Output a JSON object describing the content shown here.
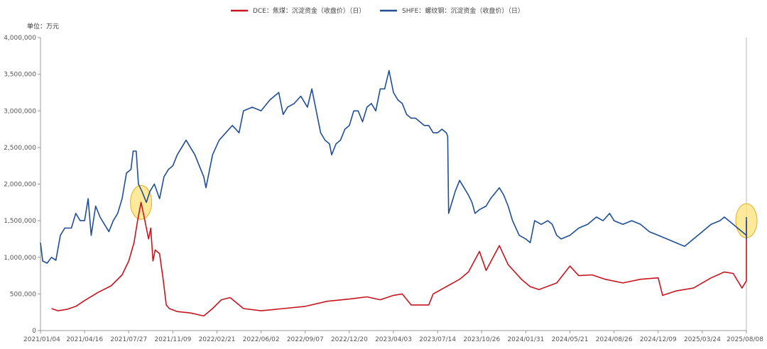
{
  "chart_data": {
    "type": "line",
    "unit_label": "单位：万元",
    "ylim": [
      0,
      4000000
    ],
    "y_ticks": [
      0,
      500000,
      1000000,
      1500000,
      2000000,
      2500000,
      3000000,
      3500000,
      4000000
    ],
    "y_tick_labels": [
      "0",
      "500,000",
      "1,000,000",
      "1,500,000",
      "2,000,000",
      "2,500,000",
      "3,000,000",
      "3,500,000",
      "4,000,000"
    ],
    "x_tick_labels": [
      "2021/01/04",
      "2021/04/16",
      "2021/07/27",
      "2021/11/09",
      "2022/02/21",
      "2022/06/02",
      "2022/09/07",
      "2022/12/20",
      "2023/04/03",
      "2023/07/14",
      "2023/10/26",
      "2024/01/31",
      "2024/05/21",
      "2024/08/26",
      "2024/12/09",
      "2025/03/24",
      "2025/08/08"
    ],
    "x_index_range": [
      0,
      16
    ],
    "colors": {
      "dce": "#c8141e",
      "shfe": "#1f4e96",
      "highlight_fill": "#ffe27a",
      "highlight_stroke": "#e0b020",
      "axis": "#999999"
    },
    "series": [
      {
        "name": "DCE：焦煤：沉淀资金（收盘价）（日）",
        "key": "dce",
        "points": [
          [
            0.25,
            300000
          ],
          [
            0.4,
            270000
          ],
          [
            0.6,
            290000
          ],
          [
            0.8,
            330000
          ],
          [
            1.0,
            410000
          ],
          [
            1.3,
            520000
          ],
          [
            1.6,
            610000
          ],
          [
            1.85,
            760000
          ],
          [
            2.0,
            950000
          ],
          [
            2.12,
            1200000
          ],
          [
            2.2,
            1500000
          ],
          [
            2.28,
            1750000
          ],
          [
            2.35,
            1550000
          ],
          [
            2.45,
            1250000
          ],
          [
            2.5,
            1400000
          ],
          [
            2.55,
            950000
          ],
          [
            2.6,
            1100000
          ],
          [
            2.7,
            1050000
          ],
          [
            2.78,
            700000
          ],
          [
            2.85,
            350000
          ],
          [
            2.92,
            300000
          ],
          [
            3.1,
            260000
          ],
          [
            3.4,
            240000
          ],
          [
            3.7,
            200000
          ],
          [
            3.9,
            300000
          ],
          [
            4.1,
            420000
          ],
          [
            4.3,
            450000
          ],
          [
            4.6,
            300000
          ],
          [
            5.0,
            270000
          ],
          [
            5.5,
            300000
          ],
          [
            6.0,
            330000
          ],
          [
            6.5,
            400000
          ],
          [
            7.0,
            430000
          ],
          [
            7.4,
            460000
          ],
          [
            7.7,
            420000
          ],
          [
            8.0,
            480000
          ],
          [
            8.2,
            500000
          ],
          [
            8.4,
            350000
          ],
          [
            8.8,
            350000
          ],
          [
            8.9,
            500000
          ],
          [
            9.2,
            600000
          ],
          [
            9.5,
            700000
          ],
          [
            9.7,
            800000
          ],
          [
            9.95,
            1080000
          ],
          [
            10.1,
            820000
          ],
          [
            10.4,
            1160000
          ],
          [
            10.6,
            900000
          ],
          [
            10.9,
            700000
          ],
          [
            11.1,
            600000
          ],
          [
            11.3,
            560000
          ],
          [
            11.7,
            650000
          ],
          [
            12.0,
            880000
          ],
          [
            12.2,
            750000
          ],
          [
            12.5,
            760000
          ],
          [
            12.8,
            700000
          ],
          [
            13.2,
            650000
          ],
          [
            13.6,
            700000
          ],
          [
            14.0,
            720000
          ],
          [
            14.1,
            480000
          ],
          [
            14.4,
            540000
          ],
          [
            14.8,
            580000
          ],
          [
            15.2,
            720000
          ],
          [
            15.5,
            800000
          ],
          [
            15.7,
            780000
          ],
          [
            15.9,
            580000
          ],
          [
            16.05,
            680000
          ],
          [
            16.25,
            800000
          ],
          [
            16.5,
            900000
          ],
          [
            16.75,
            1100000
          ],
          [
            16.85,
            1300000
          ],
          [
            16.92,
            1400000
          ],
          [
            17.0,
            1500000
          ]
        ]
      },
      {
        "name": "SHFE：螺纹钢：沉淀资金（收盘价）（日）",
        "key": "shfe",
        "points": [
          [
            0.0,
            1200000
          ],
          [
            0.05,
            950000
          ],
          [
            0.15,
            920000
          ],
          [
            0.25,
            1000000
          ],
          [
            0.35,
            960000
          ],
          [
            0.45,
            1300000
          ],
          [
            0.55,
            1400000
          ],
          [
            0.7,
            1400000
          ],
          [
            0.8,
            1600000
          ],
          [
            0.9,
            1500000
          ],
          [
            1.0,
            1500000
          ],
          [
            1.08,
            1800000
          ],
          [
            1.15,
            1300000
          ],
          [
            1.25,
            1700000
          ],
          [
            1.35,
            1550000
          ],
          [
            1.45,
            1450000
          ],
          [
            1.55,
            1350000
          ],
          [
            1.65,
            1500000
          ],
          [
            1.75,
            1600000
          ],
          [
            1.85,
            1800000
          ],
          [
            1.95,
            2150000
          ],
          [
            2.05,
            2200000
          ],
          [
            2.1,
            2450000
          ],
          [
            2.17,
            2450000
          ],
          [
            2.22,
            2000000
          ],
          [
            2.3,
            1900000
          ],
          [
            2.4,
            1750000
          ],
          [
            2.48,
            1900000
          ],
          [
            2.58,
            2000000
          ],
          [
            2.7,
            1800000
          ],
          [
            2.8,
            2100000
          ],
          [
            2.9,
            2200000
          ],
          [
            3.0,
            2250000
          ],
          [
            3.1,
            2400000
          ],
          [
            3.2,
            2500000
          ],
          [
            3.3,
            2600000
          ],
          [
            3.4,
            2500000
          ],
          [
            3.5,
            2400000
          ],
          [
            3.6,
            2250000
          ],
          [
            3.7,
            2100000
          ],
          [
            3.75,
            1950000
          ],
          [
            3.9,
            2400000
          ],
          [
            4.05,
            2600000
          ],
          [
            4.2,
            2700000
          ],
          [
            4.35,
            2800000
          ],
          [
            4.5,
            2700000
          ],
          [
            4.6,
            3000000
          ],
          [
            4.8,
            3050000
          ],
          [
            5.0,
            3000000
          ],
          [
            5.2,
            3150000
          ],
          [
            5.4,
            3250000
          ],
          [
            5.5,
            2950000
          ],
          [
            5.6,
            3050000
          ],
          [
            5.75,
            3100000
          ],
          [
            5.9,
            3200000
          ],
          [
            6.05,
            3050000
          ],
          [
            6.15,
            3300000
          ],
          [
            6.25,
            3000000
          ],
          [
            6.35,
            2700000
          ],
          [
            6.45,
            2600000
          ],
          [
            6.55,
            2550000
          ],
          [
            6.6,
            2400000
          ],
          [
            6.7,
            2550000
          ],
          [
            6.8,
            2600000
          ],
          [
            6.9,
            2750000
          ],
          [
            7.0,
            2800000
          ],
          [
            7.1,
            3000000
          ],
          [
            7.2,
            3000000
          ],
          [
            7.3,
            2850000
          ],
          [
            7.4,
            3050000
          ],
          [
            7.5,
            3100000
          ],
          [
            7.6,
            3000000
          ],
          [
            7.7,
            3300000
          ],
          [
            7.8,
            3300000
          ],
          [
            7.9,
            3550000
          ],
          [
            8.0,
            3250000
          ],
          [
            8.1,
            3150000
          ],
          [
            8.2,
            3100000
          ],
          [
            8.3,
            2950000
          ],
          [
            8.4,
            2900000
          ],
          [
            8.5,
            2900000
          ],
          [
            8.6,
            2850000
          ],
          [
            8.7,
            2800000
          ],
          [
            8.8,
            2800000
          ],
          [
            8.9,
            2700000
          ],
          [
            9.0,
            2700000
          ],
          [
            9.1,
            2750000
          ],
          [
            9.2,
            2700000
          ],
          [
            9.23,
            2650000
          ],
          [
            9.25,
            1600000
          ],
          [
            9.3,
            1700000
          ],
          [
            9.4,
            1900000
          ],
          [
            9.5,
            2050000
          ],
          [
            9.6,
            1950000
          ],
          [
            9.7,
            1850000
          ],
          [
            9.78,
            1750000
          ],
          [
            9.85,
            1600000
          ],
          [
            9.95,
            1650000
          ],
          [
            10.1,
            1700000
          ],
          [
            10.2,
            1800000
          ],
          [
            10.4,
            1950000
          ],
          [
            10.5,
            1850000
          ],
          [
            10.6,
            1700000
          ],
          [
            10.7,
            1500000
          ],
          [
            10.85,
            1300000
          ],
          [
            11.0,
            1250000
          ],
          [
            11.1,
            1200000
          ],
          [
            11.2,
            1500000
          ],
          [
            11.35,
            1450000
          ],
          [
            11.5,
            1500000
          ],
          [
            11.6,
            1450000
          ],
          [
            11.7,
            1300000
          ],
          [
            11.8,
            1250000
          ],
          [
            12.0,
            1300000
          ],
          [
            12.2,
            1400000
          ],
          [
            12.4,
            1450000
          ],
          [
            12.6,
            1550000
          ],
          [
            12.75,
            1500000
          ],
          [
            12.9,
            1600000
          ],
          [
            13.0,
            1500000
          ],
          [
            13.2,
            1450000
          ],
          [
            13.4,
            1500000
          ],
          [
            13.6,
            1450000
          ],
          [
            13.8,
            1350000
          ],
          [
            14.0,
            1300000
          ],
          [
            14.2,
            1250000
          ],
          [
            14.4,
            1200000
          ],
          [
            14.6,
            1150000
          ],
          [
            14.8,
            1250000
          ],
          [
            15.0,
            1350000
          ],
          [
            15.2,
            1450000
          ],
          [
            15.4,
            1500000
          ],
          [
            15.5,
            1550000
          ],
          [
            15.6,
            1500000
          ],
          [
            15.7,
            1450000
          ],
          [
            15.8,
            1400000
          ],
          [
            15.9,
            1350000
          ],
          [
            16.0,
            1300000
          ],
          [
            16.2,
            1250000
          ],
          [
            16.4,
            1300000
          ],
          [
            16.6,
            1300000
          ],
          [
            16.75,
            1350000
          ],
          [
            16.85,
            1400000
          ],
          [
            16.92,
            1500000
          ],
          [
            17.0,
            1550000
          ]
        ]
      }
    ],
    "highlights": [
      {
        "x": 2.28,
        "y": 1750000
      },
      {
        "x": 16.9,
        "y": 1500000
      }
    ]
  }
}
